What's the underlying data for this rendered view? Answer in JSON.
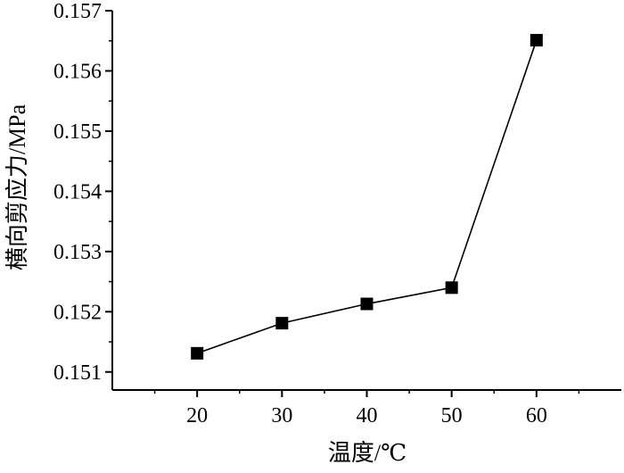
{
  "chart_data": {
    "type": "line",
    "title": "",
    "xlabel": "温度/℃",
    "ylabel": "横向剪应力/MPa",
    "x": [
      20,
      30,
      40,
      50,
      60
    ],
    "series": [
      {
        "name": "",
        "values": [
          0.15131,
          0.15181,
          0.15213,
          0.1524,
          0.15651
        ]
      }
    ],
    "xlim": [
      10,
      70
    ],
    "ylim": [
      0.1507,
      0.157
    ],
    "xticks": [
      "20",
      "30",
      "40",
      "50",
      "60"
    ],
    "yticks": [
      "0.151",
      "0.152",
      "0.153",
      "0.154",
      "0.155",
      "0.156",
      "0.157"
    ],
    "grid": false,
    "legend": "none",
    "marker": "square",
    "line_color": "#000000"
  }
}
